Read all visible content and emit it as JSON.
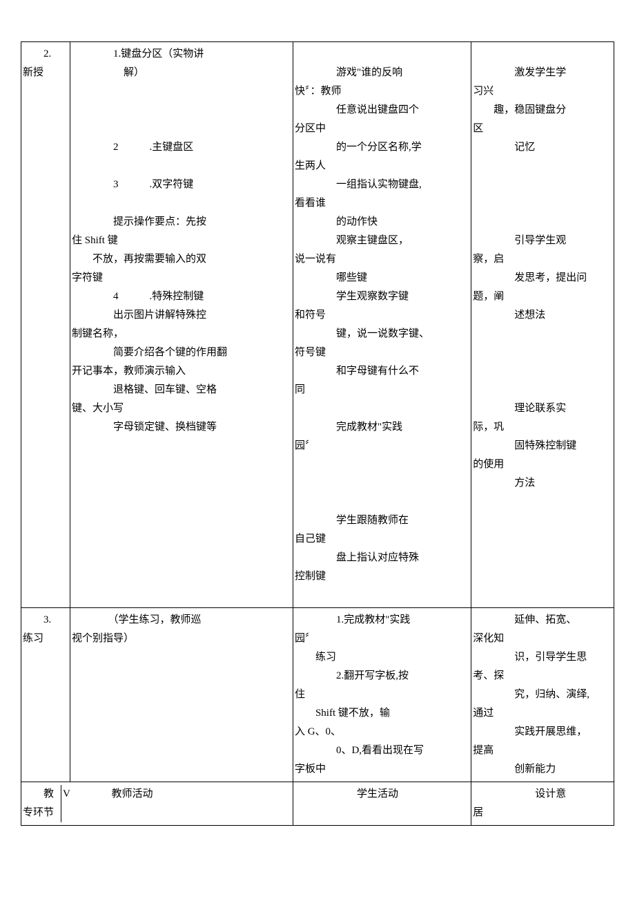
{
  "rows": [
    {
      "stage": {
        "num": "2.",
        "label": "新授"
      },
      "teacher": {
        "lines": [
          "　　　　1.键盘分区（实物讲",
          "　　　　　解）",
          "",
          "",
          "",
          "　　　　2　　　.主键盘区",
          "",
          "　　　　3　　　.双字符键",
          "",
          "　　　　提示操作要点：先按",
          "住 Shift 键",
          "　　不放，再按需要输入的双",
          "字符键",
          "　　　　4　　　.特殊控制键",
          "　　　　出示图片讲解特殊控",
          "制键名称，",
          "　　　　简要介绍各个键的作用翻",
          "开记事本，教师演示输入",
          "　　　　退格键、回车键、空格",
          "键、大小写",
          "　　　　字母锁定键、换档键等"
        ]
      },
      "student": {
        "lines": [
          "",
          "　　　　游戏\"谁的反响",
          "快〞：教师",
          "　　　　任意说出键盘四个",
          "分区中",
          "　　　　的一个分区名称,学",
          "生两人",
          "　　　　一组指认实物键盘,",
          "看看谁",
          "　　　　的动作快",
          "　　　　观察主键盘区，",
          "说一说有",
          "　　　　哪些键",
          "　　　　学生观察数字键",
          "和符号",
          "　　　　键，说一说数字键、",
          "符号键",
          "　　　　和字母键有什么不",
          "同",
          "",
          "　　　　完成教材\"实践",
          "园〞",
          "",
          "",
          "",
          "　　　　学生跟随教师在",
          "自己键",
          "　　　　盘上指认对应特殊",
          "控制键"
        ]
      },
      "intent": {
        "lines": [
          "",
          "　　　　激发学生学",
          "习兴",
          "　　趣，稳固键盘分",
          "区",
          "　　　　记忆",
          "",
          "",
          "",
          "",
          "　　　　引导学生观",
          "察，启",
          "　　　　发思考，提出问",
          "题，阐",
          "　　　　述想法",
          "",
          "",
          "",
          "",
          "　　　　理论联系实",
          "际，巩",
          "　　　　固特殊控制键",
          "的使用",
          "　　　　方法"
        ]
      }
    },
    {
      "stage": {
        "num": "3.",
        "label": "练习"
      },
      "teacher": {
        "lines": [
          "　　　　（学生练习，教师巡",
          "视个别指导）"
        ]
      },
      "student": {
        "lines": [
          "　　　　1.完成教材\"实践",
          "园〞",
          "　　练习",
          "　　　　2.翻开写字板,按",
          "住",
          "　　Shift 键不放，输",
          "入 G、0、",
          "　　　　0、D,看看出现在写",
          "字板中"
        ]
      },
      "intent": {
        "lines": [
          "　　　　延伸、拓宽、",
          "深化知",
          "　　　　识，引导学生思",
          "考、探",
          "　　　　究，归纳、演绎,",
          "通过",
          "　　　　实践开展思维，",
          "提高",
          "　　　　创新能力"
        ]
      }
    }
  ],
  "header": {
    "col1": {
      "line1": "　　教",
      "line2": "专环节"
    },
    "col2": "V　　　　教师活动",
    "col3": "　　　　　　学生活动",
    "col4": {
      "line1": "　　　　　　设计意",
      "line2": "居"
    }
  }
}
